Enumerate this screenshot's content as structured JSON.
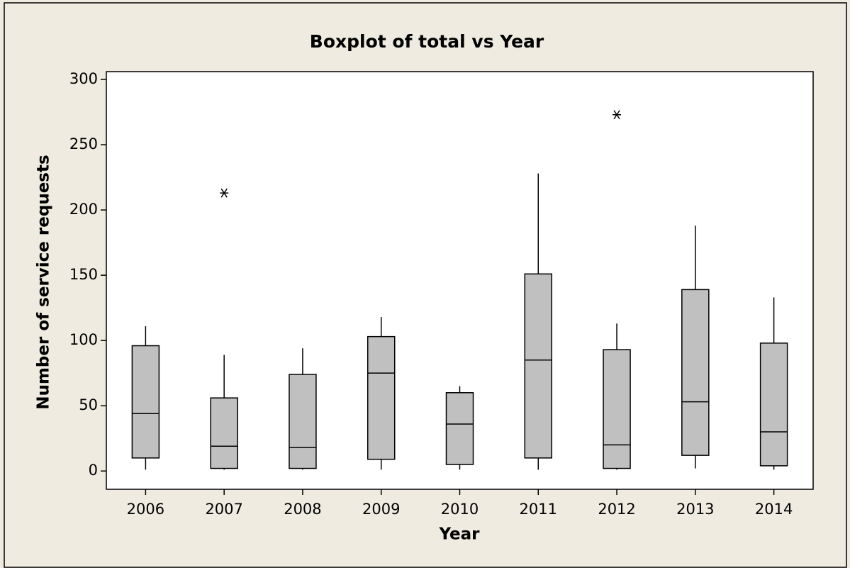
{
  "chart_data": {
    "type": "box",
    "title": "Boxplot of total vs Year",
    "x_label": "Year",
    "y_label": "Number of service requests",
    "categories": [
      "2006",
      "2007",
      "2008",
      "2009",
      "2010",
      "2011",
      "2012",
      "2013",
      "2014"
    ],
    "boxes": [
      {
        "min": 1,
        "q1": 10,
        "median": 44,
        "q3": 96,
        "max": 111
      },
      {
        "min": 1,
        "q1": 2,
        "median": 19,
        "q3": 56,
        "max": 89,
        "outliers": [
          213
        ]
      },
      {
        "min": 1,
        "q1": 2,
        "median": 18,
        "q3": 74,
        "max": 94
      },
      {
        "min": 1,
        "q1": 9,
        "median": 75,
        "q3": 103,
        "max": 118
      },
      {
        "min": 1,
        "q1": 5,
        "median": 36,
        "q3": 60,
        "max": 65
      },
      {
        "min": 1,
        "q1": 10,
        "median": 85,
        "q3": 151,
        "max": 228
      },
      {
        "min": 1,
        "q1": 2,
        "median": 20,
        "q3": 93,
        "max": 113,
        "outliers": [
          273
        ]
      },
      {
        "min": 2,
        "q1": 12,
        "median": 53,
        "q3": 139,
        "max": 188
      },
      {
        "min": 1,
        "q1": 4,
        "median": 30,
        "q3": 98,
        "max": 133
      }
    ],
    "color": "#c0c0c0",
    "ylim": [
      -14,
      306
    ],
    "yticks": [
      0,
      50,
      100,
      150,
      200,
      250,
      300
    ]
  }
}
